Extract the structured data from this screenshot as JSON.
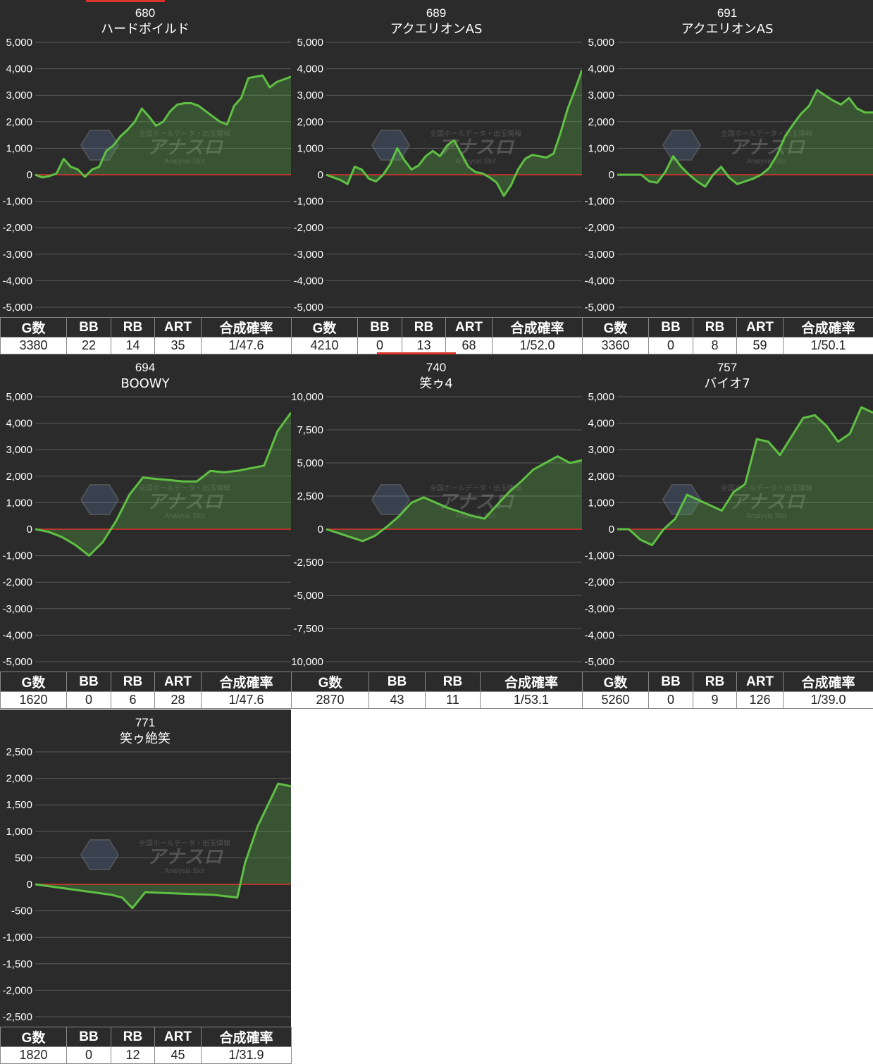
{
  "chart_data": [
    {
      "type": "area",
      "title": "680",
      "subtitle": "ハードボイルド",
      "ylim": [
        -5000,
        5000
      ],
      "yticks": [
        "5,000",
        "4,000",
        "3,000",
        "2,000",
        "1,000",
        "0",
        "-1,000",
        "-2,000",
        "-3,000",
        "-4,000",
        "-5,000"
      ],
      "values": [
        0,
        -100,
        -50,
        50,
        600,
        300,
        200,
        -80,
        200,
        300,
        900,
        1100,
        1450,
        1700,
        2000,
        2500,
        2200,
        1850,
        2000,
        2400,
        2650,
        2700,
        2700,
        2600,
        2400,
        2200,
        2000,
        1900,
        2600,
        2900,
        3650,
        3700,
        3750,
        3300,
        3500,
        3600,
        3700
      ],
      "stats": {
        "headers": [
          "G数",
          "BB",
          "RB",
          "ART",
          "合成確率"
        ],
        "values": [
          "3380",
          "22",
          "14",
          "35",
          "1/47.6"
        ]
      },
      "colors": {
        "line": "#5fc044",
        "zero": "#d9352b"
      }
    },
    {
      "type": "area",
      "title": "689",
      "subtitle": "アクエリオンAS",
      "ylim": [
        -5000,
        5000
      ],
      "yticks": [
        "5,000",
        "4,000",
        "3,000",
        "2,000",
        "1,000",
        "0",
        "-1,000",
        "-2,000",
        "-3,000",
        "-4,000",
        "-5,000"
      ],
      "values": [
        0,
        -100,
        -200,
        -350,
        300,
        200,
        -150,
        -250,
        0,
        400,
        1000,
        550,
        200,
        350,
        700,
        900,
        700,
        1100,
        1300,
        800,
        300,
        100,
        50,
        -100,
        -300,
        -800,
        -400,
        200,
        600,
        750,
        700,
        650,
        800,
        1600,
        2500,
        3200,
        3950
      ],
      "stats": {
        "headers": [
          "G数",
          "BB",
          "RB",
          "ART",
          "合成確率"
        ],
        "values": [
          "4210",
          "0",
          "13",
          "68",
          "1/52.0"
        ]
      },
      "colors": {
        "line": "#5fc044",
        "zero": "#d9352b"
      }
    },
    {
      "type": "area",
      "title": "691",
      "subtitle": "アクエリオンAS",
      "ylim": [
        -5000,
        5000
      ],
      "yticks": [
        "5,000",
        "4,000",
        "3,000",
        "2,000",
        "1,000",
        "0",
        "-1,000",
        "-2,000",
        "-3,000",
        "-4,000",
        "-5,000"
      ],
      "values": [
        0,
        0,
        0,
        0,
        -250,
        -300,
        100,
        700,
        300,
        0,
        -250,
        -450,
        0,
        300,
        -100,
        -350,
        -250,
        -150,
        0,
        250,
        750,
        1450,
        1900,
        2300,
        2600,
        3200,
        3000,
        2800,
        2650,
        2900,
        2500,
        2350,
        2350
      ],
      "stats": {
        "headers": [
          "G数",
          "BB",
          "RB",
          "ART",
          "合成確率"
        ],
        "values": [
          "3360",
          "0",
          "8",
          "59",
          "1/50.1"
        ]
      },
      "colors": {
        "line": "#5fc044",
        "zero": "#d9352b"
      }
    },
    {
      "type": "area",
      "title": "694",
      "subtitle": "BOOWY",
      "ylim": [
        -5000,
        5000
      ],
      "yticks": [
        "5,000",
        "4,000",
        "3,000",
        "2,000",
        "1,000",
        "0",
        "-1,000",
        "-2,000",
        "-3,000",
        "-4,000",
        "-5,000"
      ],
      "values": [
        0,
        -100,
        -300,
        -600,
        -1000,
        -500,
        300,
        1300,
        1950,
        1900,
        1850,
        1800,
        1800,
        2200,
        2150,
        2200,
        2300,
        2400,
        3700,
        4400
      ],
      "stats": {
        "headers": [
          "G数",
          "BB",
          "RB",
          "ART",
          "合成確率"
        ],
        "values": [
          "1620",
          "0",
          "6",
          "28",
          "1/47.6"
        ]
      },
      "colors": {
        "line": "#5fc044",
        "zero": "#d9352b"
      }
    },
    {
      "type": "area",
      "title": "740",
      "subtitle": "笑ゥ4",
      "ylim": [
        -10000,
        10000
      ],
      "yticks": [
        "10,000",
        "7,500",
        "5,000",
        "2,500",
        "0",
        "-2,500",
        "-5,000",
        "-7,500",
        "-10,000"
      ],
      "values": [
        0,
        -300,
        -600,
        -900,
        -500,
        200,
        1000,
        2000,
        2400,
        2000,
        1600,
        1300,
        1000,
        800,
        1800,
        2800,
        3600,
        4500,
        5000,
        5500,
        5000,
        5200
      ],
      "stats": {
        "headers": [
          "G数",
          "BB",
          "RB",
          "合成確率"
        ],
        "values": [
          "2870",
          "43",
          "11",
          "1/53.1"
        ]
      },
      "colors": {
        "line": "#5fc044",
        "zero": "#d9352b"
      }
    },
    {
      "type": "area",
      "title": "757",
      "subtitle": "バイオ7",
      "ylim": [
        -5000,
        5000
      ],
      "yticks": [
        "5,000",
        "4,000",
        "3,000",
        "2,000",
        "1,000",
        "0",
        "-1,000",
        "-2,000",
        "-3,000",
        "-4,000",
        "-5,000"
      ],
      "values": [
        0,
        0,
        -400,
        -600,
        0,
        400,
        1300,
        1100,
        900,
        700,
        1400,
        1700,
        3400,
        3300,
        2800,
        3500,
        4200,
        4300,
        3900,
        3300,
        3600,
        4600,
        4400
      ],
      "stats": {
        "headers": [
          "G数",
          "BB",
          "RB",
          "ART",
          "合成確率"
        ],
        "values": [
          "5260",
          "0",
          "9",
          "126",
          "1/39.0"
        ]
      },
      "colors": {
        "line": "#5fc044",
        "zero": "#d9352b"
      }
    },
    {
      "type": "area",
      "title": "771",
      "subtitle": "笑ゥ絶笑",
      "ylim": [
        -2500,
        2500
      ],
      "yticks": [
        "2,500",
        "2,000",
        "1,500",
        "1,000",
        "500",
        "0",
        "-500",
        "-1,000",
        "-1,500",
        "-2,000",
        "-2,500"
      ],
      "values": [
        0,
        -100,
        -200,
        -250,
        -450,
        -150,
        -200,
        -250,
        400,
        1100,
        1900,
        1850
      ],
      "x": [
        0,
        0.15,
        0.3,
        0.34,
        0.38,
        0.43,
        0.7,
        0.79,
        0.82,
        0.87,
        0.95,
        1.0
      ],
      "stats": {
        "headers": [
          "G数",
          "BB",
          "RB",
          "ART",
          "合成確率"
        ],
        "values": [
          "1820",
          "0",
          "12",
          "45",
          "1/31.9"
        ]
      },
      "colors": {
        "line": "#5fc044",
        "zero": "#d9352b"
      }
    }
  ],
  "watermark": {
    "main": "アナスロ",
    "sub": "Analysis Slot",
    "top": "全国ホールデータ・出玉情報"
  }
}
